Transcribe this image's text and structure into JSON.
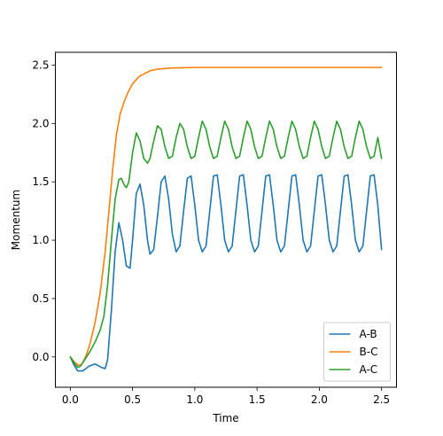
{
  "chart_data": {
    "type": "line",
    "title": "",
    "xlabel": "Time",
    "ylabel": "Momentum",
    "xlim": [
      -0.12,
      2.62
    ],
    "ylim": [
      -0.26,
      2.61
    ],
    "xticks": [
      0.0,
      0.5,
      1.0,
      1.5,
      2.0,
      2.5
    ],
    "xtick_labels": [
      "0.0",
      "0.5",
      "1.0",
      "1.5",
      "2.0",
      "2.5"
    ],
    "yticks": [
      0.0,
      0.5,
      1.0,
      1.5,
      2.0,
      2.5
    ],
    "ytick_labels": [
      "0.0",
      "0.5",
      "1.0",
      "1.5",
      "2.0",
      "2.5"
    ],
    "grid": false,
    "legend_position": "lower-right",
    "series": [
      {
        "name": "A-B",
        "color": "#1f77b4",
        "x": [
          0.0,
          0.03,
          0.06,
          0.1,
          0.15,
          0.2,
          0.25,
          0.28,
          0.3,
          0.33,
          0.36,
          0.39,
          0.42,
          0.45,
          0.48,
          0.5,
          0.53,
          0.56,
          0.59,
          0.62,
          0.64,
          0.67,
          0.7,
          0.73,
          0.76,
          0.79,
          0.82,
          0.85,
          0.88,
          0.91,
          0.94,
          0.97,
          1.0,
          1.03,
          1.06,
          1.09,
          1.12,
          1.15,
          1.18,
          1.21,
          1.24,
          1.27,
          1.3,
          1.33,
          1.36,
          1.39,
          1.42,
          1.45,
          1.48,
          1.51,
          1.54,
          1.57,
          1.6,
          1.63,
          1.66,
          1.69,
          1.72,
          1.75,
          1.78,
          1.81,
          1.84,
          1.87,
          1.9,
          1.93,
          1.96,
          1.99,
          2.02,
          2.05,
          2.08,
          2.11,
          2.14,
          2.17,
          2.2,
          2.23,
          2.26,
          2.29,
          2.32,
          2.35,
          2.38,
          2.41,
          2.44,
          2.47,
          2.5
        ],
        "y": [
          0.0,
          -0.07,
          -0.12,
          -0.12,
          -0.08,
          -0.06,
          -0.09,
          -0.1,
          -0.02,
          0.4,
          0.9,
          1.15,
          1.0,
          0.78,
          0.76,
          1.0,
          1.4,
          1.48,
          1.3,
          1.0,
          0.88,
          0.92,
          1.2,
          1.5,
          1.55,
          1.35,
          1.05,
          0.9,
          0.95,
          1.25,
          1.53,
          1.55,
          1.3,
          1.0,
          0.9,
          0.95,
          1.25,
          1.55,
          1.56,
          1.3,
          1.0,
          0.9,
          0.95,
          1.25,
          1.55,
          1.56,
          1.3,
          1.0,
          0.9,
          0.95,
          1.25,
          1.55,
          1.56,
          1.3,
          1.0,
          0.9,
          0.95,
          1.25,
          1.55,
          1.56,
          1.3,
          1.0,
          0.9,
          0.95,
          1.25,
          1.55,
          1.56,
          1.3,
          1.0,
          0.9,
          0.95,
          1.25,
          1.55,
          1.56,
          1.3,
          1.0,
          0.9,
          0.95,
          1.25,
          1.55,
          1.56,
          1.3,
          0.92
        ]
      },
      {
        "name": "B-C",
        "color": "#ff7f0e",
        "x": [
          0.0,
          0.03,
          0.06,
          0.08,
          0.1,
          0.13,
          0.16,
          0.2,
          0.24,
          0.28,
          0.31,
          0.34,
          0.37,
          0.4,
          0.43,
          0.46,
          0.5,
          0.55,
          0.6,
          0.65,
          0.7,
          0.75,
          0.8,
          0.9,
          1.0,
          1.2,
          1.5,
          2.0,
          2.5
        ],
        "y": [
          0.0,
          -0.04,
          -0.07,
          -0.07,
          -0.05,
          0.02,
          0.12,
          0.3,
          0.55,
          0.9,
          1.25,
          1.6,
          1.9,
          2.08,
          2.18,
          2.26,
          2.34,
          2.4,
          2.43,
          2.455,
          2.465,
          2.47,
          2.475,
          2.478,
          2.48,
          2.48,
          2.48,
          2.48,
          2.48
        ]
      },
      {
        "name": "A-C",
        "color": "#2ca02c",
        "x": [
          0.0,
          0.03,
          0.06,
          0.08,
          0.1,
          0.13,
          0.16,
          0.2,
          0.24,
          0.27,
          0.3,
          0.33,
          0.36,
          0.39,
          0.41,
          0.43,
          0.45,
          0.47,
          0.5,
          0.53,
          0.56,
          0.59,
          0.62,
          0.64,
          0.67,
          0.7,
          0.73,
          0.76,
          0.79,
          0.82,
          0.85,
          0.88,
          0.91,
          0.94,
          0.97,
          1.0,
          1.03,
          1.06,
          1.09,
          1.12,
          1.15,
          1.18,
          1.21,
          1.24,
          1.27,
          1.3,
          1.33,
          1.36,
          1.39,
          1.42,
          1.45,
          1.48,
          1.51,
          1.54,
          1.57,
          1.6,
          1.63,
          1.66,
          1.69,
          1.72,
          1.75,
          1.78,
          1.81,
          1.84,
          1.87,
          1.9,
          1.93,
          1.96,
          1.99,
          2.02,
          2.05,
          2.08,
          2.11,
          2.14,
          2.17,
          2.2,
          2.23,
          2.26,
          2.29,
          2.32,
          2.35,
          2.38,
          2.41,
          2.44,
          2.47,
          2.5
        ],
        "y": [
          0.0,
          -0.05,
          -0.09,
          -0.08,
          -0.05,
          0.0,
          0.05,
          0.13,
          0.23,
          0.35,
          0.62,
          1.0,
          1.35,
          1.52,
          1.53,
          1.48,
          1.45,
          1.5,
          1.75,
          1.92,
          1.85,
          1.7,
          1.66,
          1.7,
          1.85,
          1.98,
          1.95,
          1.8,
          1.7,
          1.72,
          1.88,
          2.0,
          1.95,
          1.8,
          1.7,
          1.72,
          1.88,
          2.02,
          1.95,
          1.8,
          1.7,
          1.72,
          1.88,
          2.02,
          1.95,
          1.8,
          1.7,
          1.72,
          1.88,
          2.02,
          1.95,
          1.8,
          1.7,
          1.72,
          1.88,
          2.02,
          1.95,
          1.8,
          1.7,
          1.72,
          1.88,
          2.02,
          1.95,
          1.8,
          1.7,
          1.72,
          1.88,
          2.02,
          1.95,
          1.8,
          1.7,
          1.72,
          1.88,
          2.02,
          1.95,
          1.8,
          1.7,
          1.72,
          1.88,
          2.02,
          1.95,
          1.8,
          1.7,
          1.72,
          1.88,
          1.7
        ]
      }
    ]
  }
}
